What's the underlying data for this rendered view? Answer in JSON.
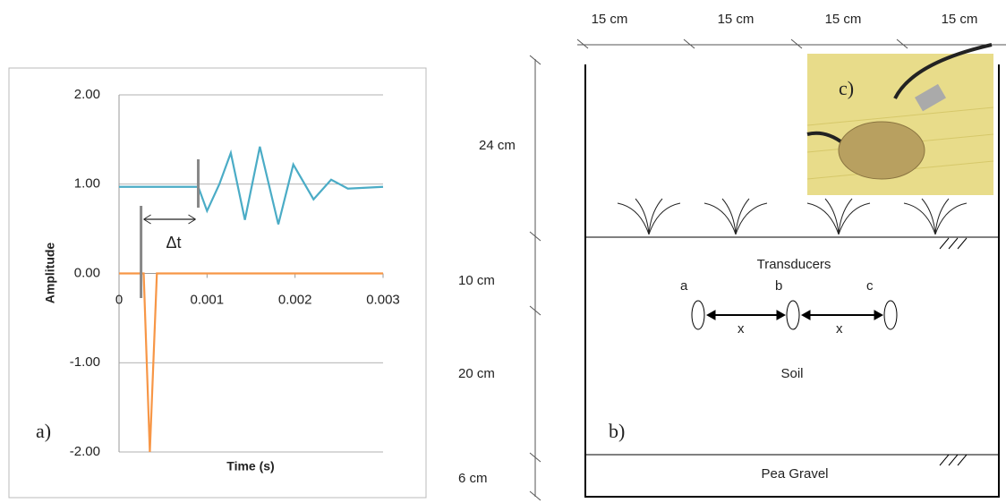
{
  "chart_data": {
    "type": "line",
    "panel_label": "a)",
    "x_label": "Time (s)",
    "y_label": "Amplitude",
    "xlim": [
      0,
      0.003
    ],
    "xticks": [
      0,
      0.001,
      0.002,
      0.003
    ],
    "ylim": [
      -2,
      2
    ],
    "yticks": [
      {
        "value": 2,
        "label": "2.00"
      },
      {
        "value": 1,
        "label": "1.00"
      },
      {
        "value": 0,
        "label": "0.00"
      },
      {
        "value": -1,
        "label": "-1.00"
      },
      {
        "value": -2,
        "label": "-2.00"
      }
    ],
    "grid": true,
    "series": [
      {
        "color": "#4bacc6",
        "x": [
          0,
          0.0005,
          0.0009,
          0.001,
          0.00114,
          0.00127,
          0.00143,
          0.0016,
          0.00181,
          0.00198,
          0.00221,
          0.00241,
          0.0026,
          0.003
        ],
        "values": [
          0.97,
          0.97,
          0.97,
          0.7,
          1.0,
          1.35,
          0.6,
          1.42,
          0.55,
          1.22,
          0.83,
          1.05,
          0.95,
          0.97
        ]
      },
      {
        "color": "#f79646",
        "x": [
          0,
          0.00028,
          0.00035,
          0.00043,
          0.003
        ],
        "values": [
          0,
          0,
          -2,
          0,
          0
        ]
      }
    ],
    "annotation": "Δt",
    "markers": [
      0.00025,
      0.0009
    ]
  },
  "diagram": {
    "panel_label": "b)",
    "photo_label": "c)",
    "widths": [
      "15 cm",
      "15 cm",
      "15 cm",
      "15 cm"
    ],
    "depths": [
      "24 cm",
      "10 cm",
      "20 cm",
      "6 cm"
    ],
    "layers": [
      "Transducers",
      "Soil",
      "Pea Gravel"
    ],
    "sensors": [
      "a",
      "b",
      "c"
    ],
    "spacings": [
      "x",
      "x"
    ]
  }
}
